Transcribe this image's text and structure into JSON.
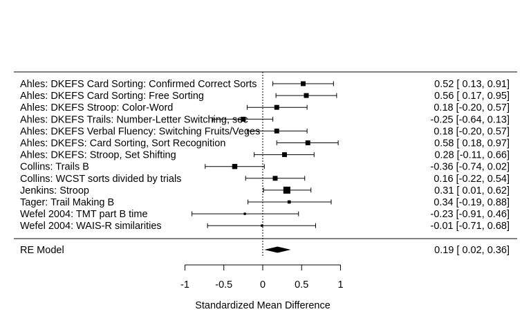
{
  "chart_data": {
    "type": "forest",
    "xlabel": "Standardized Mean Difference",
    "xlim": [
      -1,
      1
    ],
    "xticks": [
      -1,
      -0.5,
      0,
      0.5,
      1
    ],
    "xtick_labels": [
      "-1",
      "-0.5",
      "0",
      "0.5",
      "1"
    ],
    "reference_line": 0,
    "studies": [
      {
        "label": "Ahles: DKEFS Card Sorting: Confirmed Correct Sorts",
        "est": 0.52,
        "lo": 0.13,
        "hi": 0.91,
        "ci_text": "0.52 [ 0.13, 0.91]",
        "weight": 0.55
      },
      {
        "label": "Ahles: DKEFS Card Sorting: Free Sorting",
        "est": 0.56,
        "lo": 0.17,
        "hi": 0.95,
        "ci_text": "0.56 [ 0.17, 0.95]",
        "weight": 0.55
      },
      {
        "label": "Ahles: DKEFS Stroop: Color-Word",
        "est": 0.18,
        "lo": -0.2,
        "hi": 0.57,
        "ci_text": "0.18 [-0.20, 0.57]",
        "weight": 0.55
      },
      {
        "label": "Ahles: DKEFS Trails: Number-Letter Switching, sec",
        "est": -0.25,
        "lo": -0.64,
        "hi": 0.13,
        "ci_text": "-0.25 [-0.64, 0.13]",
        "weight": 0.55
      },
      {
        "label": "Ahles: DKEFS Verbal Fluency: Switching Fruits/Veges",
        "est": 0.18,
        "lo": -0.2,
        "hi": 0.57,
        "ci_text": "0.18 [-0.20, 0.57]",
        "weight": 0.55
      },
      {
        "label": "Ahles: DKEFS: Card Sorting, Sort Recognition",
        "est": 0.58,
        "lo": 0.18,
        "hi": 0.97,
        "ci_text": "0.58 [ 0.18, 0.97]",
        "weight": 0.55
      },
      {
        "label": "Ahles: DKEFS: Stroop, Set Shifting",
        "est": 0.28,
        "lo": -0.11,
        "hi": 0.66,
        "ci_text": "0.28 [-0.11, 0.66]",
        "weight": 0.55
      },
      {
        "label": "Collins: Trails B",
        "est": -0.36,
        "lo": -0.74,
        "hi": 0.02,
        "ci_text": "-0.36 [-0.74, 0.02]",
        "weight": 0.6
      },
      {
        "label": "Collins: WCST sorts divided by trials",
        "est": 0.16,
        "lo": -0.22,
        "hi": 0.54,
        "ci_text": "0.16 [-0.22, 0.54]",
        "weight": 0.55
      },
      {
        "label": "Jenkins: Stroop",
        "est": 0.31,
        "lo": 0.01,
        "hi": 0.62,
        "ci_text": "0.31 [ 0.01, 0.62]",
        "weight": 0.9
      },
      {
        "label": "Tager: Trail Making B",
        "est": 0.34,
        "lo": -0.19,
        "hi": 0.88,
        "ci_text": "0.34 [-0.19, 0.88]",
        "weight": 0.3
      },
      {
        "label": "Wefel 2004: TMT part B time",
        "est": -0.23,
        "lo": -0.91,
        "hi": 0.46,
        "ci_text": "-0.23 [-0.91, 0.46]",
        "weight": 0.15
      },
      {
        "label": "Wefel 2004: WAIS-R similarities",
        "est": -0.01,
        "lo": -0.71,
        "hi": 0.68,
        "ci_text": "-0.01 [-0.71, 0.68]",
        "weight": 0.15
      }
    ],
    "summary": {
      "label": "RE Model",
      "est": 0.19,
      "lo": 0.02,
      "hi": 0.36,
      "ci_text": "0.19 [ 0.02, 0.36]"
    }
  }
}
